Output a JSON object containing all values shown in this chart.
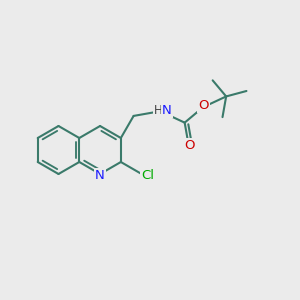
{
  "background_color": "#ebebeb",
  "bond_color": "#3a7a6a",
  "n_color": "#1a1aff",
  "o_color": "#cc0000",
  "cl_color": "#00aa00",
  "lw": 1.5,
  "atoms": {
    "N1": [
      0.822,
      0.655
    ],
    "C1": [
      0.988,
      0.598
    ],
    "N1_label": "N",
    "H_label": "H"
  }
}
